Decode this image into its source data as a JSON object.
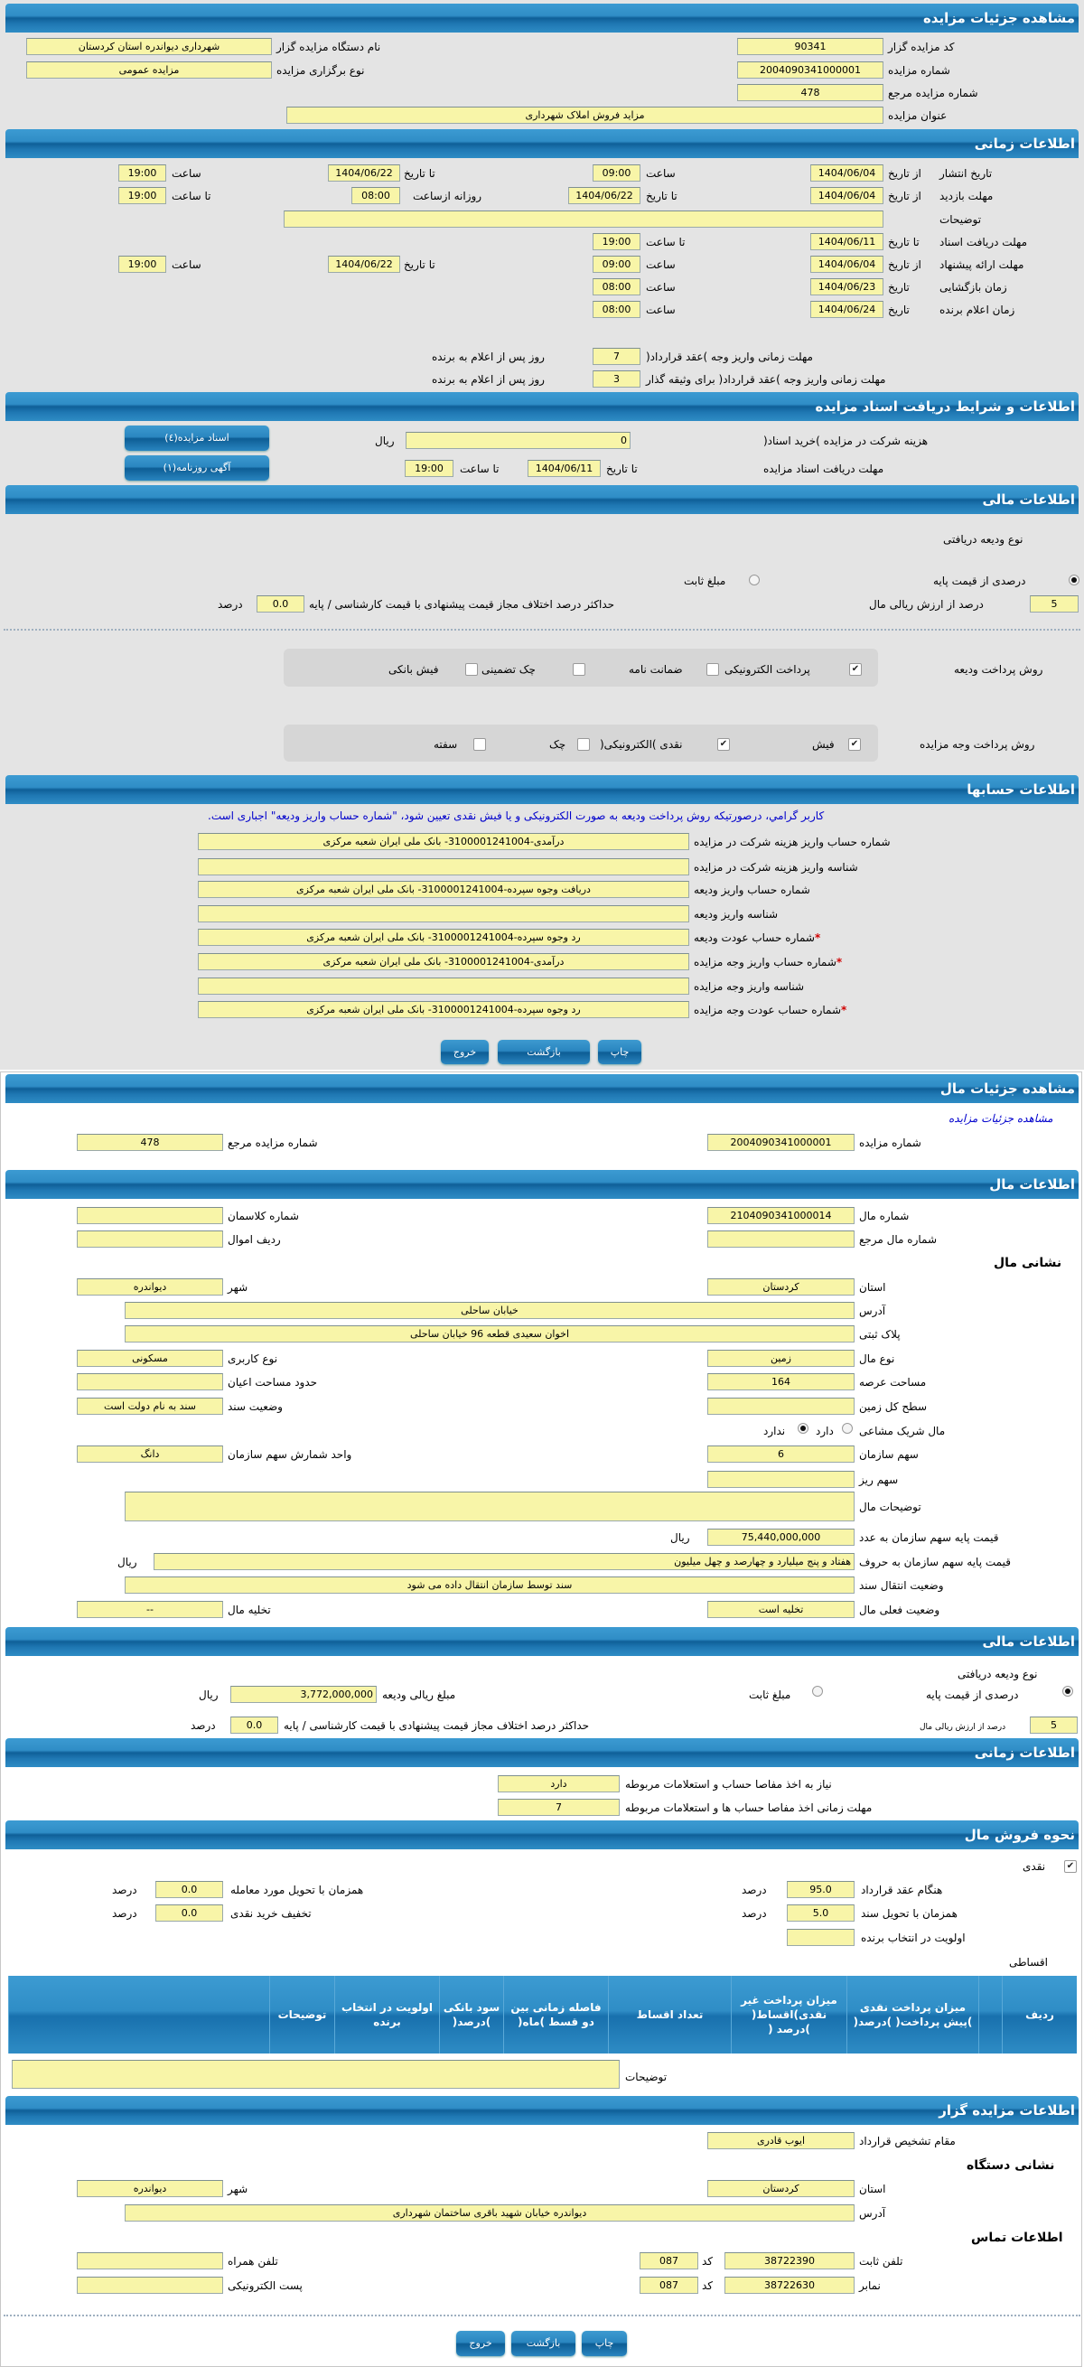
{
  "page_title": "مشاهده جزئیات مزایده",
  "auction": {
    "code_label": "کد مزایده گزار",
    "code": "90341",
    "org_label": "نام دستگاه مزایده گزار",
    "org": "شهرداری دیواندره استان کردستان",
    "number_label": "شماره مزایده",
    "number": "2004090341000001",
    "type_label": "نوع برگزاری مزایده",
    "type": "مزایده عمومی",
    "ref_label": "شماره مزایده مرجع",
    "ref": "478",
    "title_label": "عنوان مزایده",
    "title": "مزاید فروش املاک شهرداری"
  },
  "timing": {
    "header": "اطلاعات زمانی",
    "labels": {
      "from_date": "از تاریخ",
      "to_date": "تا تاریخ",
      "date": "تاریخ",
      "time": "ساعت",
      "to_time": "تا ساعت",
      "daily_from": "روزانه ازساعت",
      "desc": "توضیحات",
      "days_after": "روز پس از اعلام به برنده"
    },
    "publish": {
      "label": "تاریخ انتشار",
      "from_date": "1404/06/04",
      "from_time": "09:00",
      "to_date": "1404/06/22",
      "to_time": "19:00"
    },
    "visit": {
      "label": "مهلت بازدید",
      "from_date": "1404/06/04",
      "to_date": "1404/06/22",
      "daily_from": "08:00",
      "to_time": "19:00"
    },
    "description": "",
    "docs_deadline": {
      "label": "مهلت دریافت اسناد",
      "to_date": "1404/06/11",
      "to_time": "19:00"
    },
    "offer": {
      "label": "مهلت ارائه پیشنهاد",
      "from_date": "1404/06/04",
      "from_time": "09:00",
      "to_date": "1404/06/22",
      "to_time": "19:00"
    },
    "opening": {
      "label": "زمان بازگشایی",
      "date": "1404/06/23",
      "time": "08:00"
    },
    "winner": {
      "label": "زمان اعلام برنده",
      "date": "1404/06/24",
      "time": "08:00"
    },
    "payment_deadline": {
      "label": "مهلت زمانی واریز وجه )عقد قرارداد(",
      "days": "7"
    },
    "collateral_deadline": {
      "label": "مهلت زمانی واریز وجه )عقد قرارداد( برای وثیقه گذار",
      "days": "3"
    }
  },
  "documents": {
    "header": "اطلاعات و شرایط دریافت اسناد مزایده",
    "fee_label": "هزینه شرکت در مزایده )خرید اسناد(",
    "fee": "0",
    "currency": "ریال",
    "deadline_label": "مهلت دریافت اسناد مزایده",
    "to_date_label": "تا تاریخ",
    "to_date": "1404/06/11",
    "to_time_label": "تا ساعت",
    "to_time": "19:00",
    "docs_button": "اسناد مزایده(٤)",
    "ad_button": "آگهی روزنامه(١)"
  },
  "financial": {
    "header": "اطلاعات مالی",
    "deposit_type_label": "نوع ودیعه دریافتی",
    "option_percent": "درصدی از قیمت پایه",
    "option_fixed": "مبلغ ثابت",
    "percent_selected": true,
    "fixed_selected": false,
    "percent": "5",
    "percent_label": "درصد از ارزش ریالی مال",
    "max_diff_label": "حداکثر درصد اختلاف مجاز قیمت پیشنهادی با قیمت کارشناسی / پایه",
    "max_diff": "0.0",
    "percent_unit": "درصد",
    "deposit_methods_label": "روش پرداخت ودیعه",
    "deposit_methods": [
      {
        "label": "پرداخت الکترونیکی",
        "checked": true
      },
      {
        "label": "ضمانت نامه",
        "checked": false
      },
      {
        "label": "چک تضمینی",
        "checked": false
      },
      {
        "label": "فیش بانکی",
        "checked": false
      }
    ],
    "payment_methods_label": "روش پرداخت وجه مزایده",
    "payment_methods": [
      {
        "label": "فیش",
        "checked": true
      },
      {
        "label": "نقدی )الکترونیکی(",
        "checked": true
      },
      {
        "label": "چک",
        "checked": false
      },
      {
        "label": "سفته",
        "checked": false
      }
    ]
  },
  "accounts": {
    "header": "اطلاعات حسابها",
    "notice": "کاربر گرامي، درصورتیکه روش پرداخت ودیعه به صورت الکترونیکی و یا فیش نقدی تعیین شود، \"شماره حساب واریز ودیعه\" اجباری است.",
    "rows": [
      {
        "label": "شماره حساب واریز هزینه شرکت در مزایده",
        "value": "درآمدی-3100001241004- بانک ملی ایران شعبه مرکزی",
        "required": false
      },
      {
        "label": "شناسه واریز هزینه شرکت در مزایده",
        "value": "",
        "required": false
      },
      {
        "label": "شماره حساب واریز ودیعه",
        "value": "دریافت وجوه سپرده-3100001241004- بانک ملی ایران شعبه مرکزی",
        "required": false
      },
      {
        "label": "شناسه واریز ودیعه",
        "value": "",
        "required": false
      },
      {
        "label": "شماره حساب عودت ودیعه",
        "value": "رد وجوه سپرده-3100001241004- بانک ملی ایران شعبه مرکزی",
        "required": true
      },
      {
        "label": "شماره حساب واریز وجه مزایده",
        "value": "درآمدی-3100001241004- بانک ملی ایران شعبه مرکزی",
        "required": true
      },
      {
        "label": "شناسه واریز وجه مزایده",
        "value": "",
        "required": false
      },
      {
        "label": "شماره حساب عودت وجه مزایده",
        "value": "رد وجوه سپرده-3100001241004- بانک ملی ایران شعبه مرکزی",
        "required": true
      }
    ]
  },
  "actions": {
    "print": "چاپ",
    "back": "بازگشت",
    "exit": "خروج"
  },
  "item": {
    "header": "مشاهده جزئیات مال",
    "auction_link": "مشاهده جزئیات مزایده",
    "auction_number_label": "شماره مزایده",
    "auction_number": "2004090341000001",
    "auction_ref_label": "شماره مزایده مرجع",
    "auction_ref": "478",
    "info_header": "اطلاعات مال",
    "number_label": "شماره مال",
    "number": "2104090341000014",
    "classman_label": "شماره کلاسمان",
    "classman": "",
    "ref_label": "شماره مال مرجع",
    "ref": "",
    "asset_row_label": "ردیف اموال",
    "asset_row": "",
    "address_header": "نشانی مال",
    "province_label": "استان",
    "province": "کردستان",
    "city_label": "شهر",
    "city": "دیواندره",
    "address_label": "آدرس",
    "address": "خیابان ساحلی",
    "plate_label": "پلاک ثبتی",
    "plate": "اخوان سعیدی قطعه 96 خیابان ساحلی",
    "type_label": "نوع مال",
    "type": "زمین",
    "usage_label": "نوع کاربری",
    "usage": "مسکونی",
    "land_area_label": "مساحت عرصه",
    "land_area": "164",
    "building_area_label": "حدود مساحت اعیان",
    "building_area": "",
    "total_land_label": "سطح کل زمین",
    "total_land": "",
    "deed_status_label": "وضعیت سند",
    "deed_status": "سند به نام دولت است",
    "shared_label": "مال شریک مشاعی",
    "shared_yes": "دارد",
    "shared_no": "ندارد",
    "shared_yes_selected": false,
    "shared_no_selected": true,
    "org_share_label": "سهم سازمان",
    "org_share": "6",
    "share_unit_label": "واحد شمارش سهم سازمان",
    "share_unit": "دانگ",
    "minor_share_label": "سهم ریز",
    "minor_share": "",
    "description_label": "توضیحات مال",
    "description": "",
    "base_price_label": "قیمت پایه سهم سازمان به عدد",
    "base_price": "75,440,000,000",
    "currency": "ریال",
    "base_price_words_label": "قیمت پایه سهم سازمان به حروف",
    "base_price_words": "هفتاد و پنج میلیارد و چهارصد و چهل میلیون",
    "transfer_status_label": "وضعیت انتقال سند",
    "transfer_status": "سند توسط سازمان انتقال داده می شود",
    "current_status_label": "وضعیت فعلی مال",
    "current_status": "تخلیه است",
    "evacuation_label": "تخلیه مال",
    "evacuation": "--"
  },
  "item_financial": {
    "header": "اطلاعات مالی",
    "deposit_type_label": "نوع ودیعه دریافتی",
    "option_percent": "درصدی از قیمت پایه",
    "option_fixed": "مبلغ ثابت",
    "percent_selected": true,
    "fixed_selected": false,
    "deposit_amount_label": "مبلغ ریالی ودیعه",
    "deposit_amount": "3,772,000,000",
    "currency": "ریال",
    "percent": "5",
    "percent_label": "درصد از ارزش ریالی مال",
    "max_diff_label": "حداکثر درصد اختلاف مجاز قیمت پیشنهادی با قیمت کارشناسی / پایه",
    "max_diff": "0.0",
    "percent_unit": "درصد"
  },
  "item_timing": {
    "header": "اطلاعات زمانی",
    "clearance_label": "نیاز به اخذ مفاصا حساب و استعلامات مربوطه",
    "clearance": "دارد",
    "clearance_deadline_label": "مهلت زمانی اخذ مفاصا حساب ها و استعلامات مربوطه",
    "clearance_deadline": "7"
  },
  "sale": {
    "header": "نحوه فروش مال",
    "cash_label": "نقدی",
    "cash_checked": true,
    "on_contract_label": "هنگام عقد قرارداد",
    "on_contract": "95.0",
    "on_deed_label": "همزمان با تحویل سند",
    "on_deed": "5.0",
    "on_delivery_label": "همزمان با تحویل مورد معامله",
    "on_delivery": "0.0",
    "cash_discount_label": "تخفیف خرید نقدی",
    "cash_discount": "0.0",
    "priority_label": "اولویت در انتخاب برنده",
    "priority": "",
    "percent_unit": "درصد",
    "installment_label": "اقساطی",
    "installment_columns": [
      "ردیف",
      "",
      "میزان پرداخت نقدی )پیش پرداخت( )درصد(",
      "میزان پرداخت غیر نقدی)اقساط( )درصد (",
      "تعداد اقساط",
      "فاصله زمانی بین دو قسط )ماه(",
      "سود بانکی )درصد(",
      "اولویت در انتخاب برنده",
      "توضیحات",
      ""
    ],
    "description_label": "توضیحات",
    "description": ""
  },
  "auctioneer": {
    "header": "اطلاعات مزایده گزار",
    "authority_label": "مقام تشخیص قرارداد",
    "authority": "ایوب قادری",
    "address_header": "نشانی دستگاه",
    "province_label": "استان",
    "province": "کردستان",
    "city_label": "شهر",
    "city": "دیواندره",
    "address_label": "آدرس",
    "address": "دیواندره خیابان شهید باقری ساختمان شهرداری",
    "contact_header": "اطلاعات تماس",
    "phone_label": "تلفن ثابت",
    "phone": "38722390",
    "code_label": "کد",
    "phone_code": "087",
    "mobile_label": "تلفن همراه",
    "mobile": "",
    "fax_label": "نمابر",
    "fax": "38722630",
    "fax_code": "087",
    "email_label": "پست الکترونیکی",
    "email": ""
  }
}
